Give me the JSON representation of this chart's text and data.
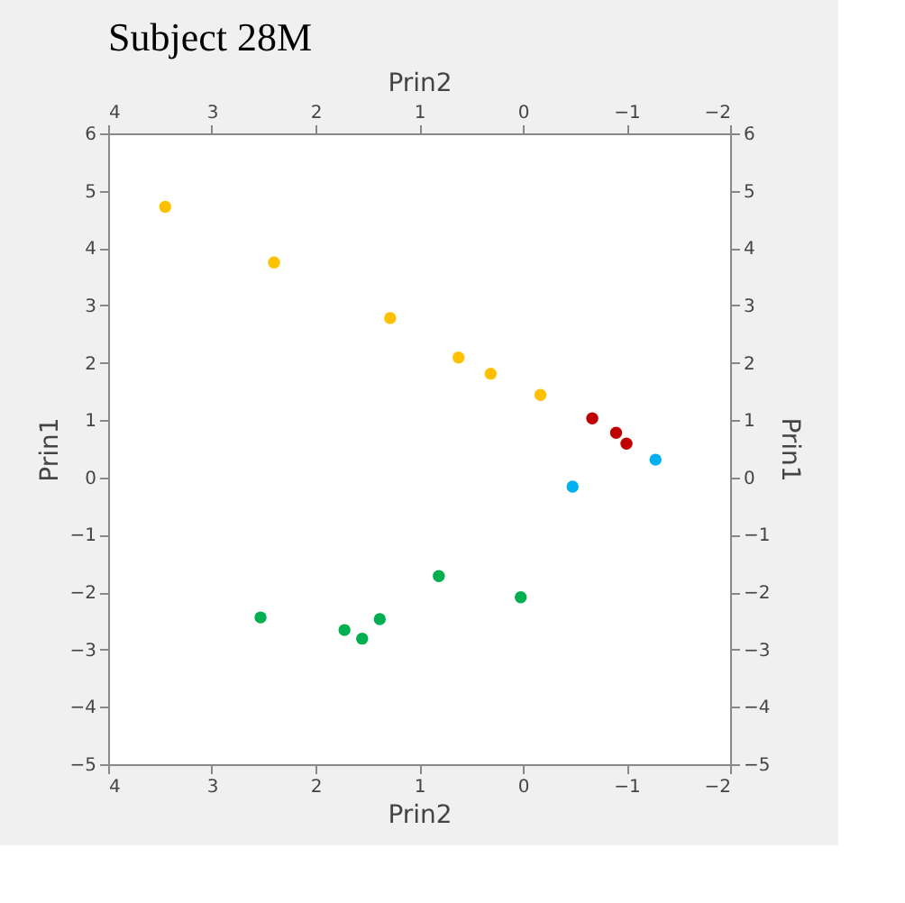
{
  "chart_data": {
    "type": "scatter",
    "title": "Subject 28M",
    "xlabel": "Prin2",
    "ylabel": "Prin1",
    "x2label": "Prin2",
    "y2label": "Prin1",
    "xlim": [
      4,
      -2
    ],
    "xticks": [
      4,
      3,
      2,
      1,
      0,
      -1,
      -2
    ],
    "x2lim": [
      4,
      -2
    ],
    "x2ticks": [
      4,
      3,
      2,
      1,
      0,
      -1,
      -2
    ],
    "ylim": [
      -5,
      6
    ],
    "yticks": [
      -5,
      -4,
      -3,
      -2,
      -1,
      0,
      1,
      2,
      3,
      4,
      5,
      6
    ],
    "y2lim": [
      -5,
      6
    ],
    "y2ticks": [
      -5,
      -4,
      -3,
      -2,
      -1,
      0,
      1,
      2,
      3,
      4,
      5,
      6
    ],
    "marker": "circle",
    "grid": false,
    "legend": false,
    "series": [
      {
        "color": "#ffc000",
        "x": [
          3.45,
          2.4,
          1.28,
          0.62,
          0.31,
          -0.17
        ],
        "values": [
          4.72,
          3.75,
          2.78,
          2.09,
          1.81,
          1.44
        ]
      },
      {
        "color": "#c00000",
        "x": [
          -0.67,
          -0.9,
          -1.0
        ],
        "values": [
          1.03,
          0.78,
          0.59
        ]
      },
      {
        "color": "#00b0f0",
        "x": [
          -0.48,
          -1.28
        ],
        "values": [
          -0.16,
          0.31
        ]
      },
      {
        "color": "#00b050",
        "x": [
          2.53,
          1.72,
          1.55,
          1.38,
          0.81,
          0.02
        ],
        "values": [
          -2.44,
          -2.66,
          -2.81,
          -2.47,
          -1.72,
          -2.09
        ]
      }
    ]
  }
}
